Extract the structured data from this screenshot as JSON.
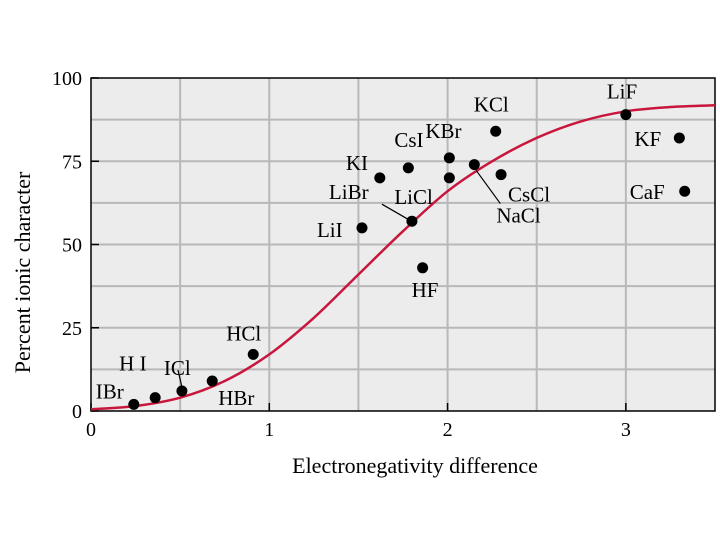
{
  "chart_data": {
    "type": "scatter",
    "title": "",
    "xlabel": "Electronegativity difference",
    "ylabel": "Percent ionic character",
    "xlim": [
      0,
      3.5
    ],
    "ylim": [
      0,
      100
    ],
    "x_ticks": [
      "0",
      "1",
      "2",
      "3"
    ],
    "y_ticks": [
      "0",
      "25",
      "50",
      "75",
      "100"
    ],
    "grid": true,
    "colors": {
      "plot_background": "#ececec",
      "grid": "#b8b8b8",
      "curve": "#c8163c",
      "points": "#000000"
    },
    "points": [
      {
        "label": "IBr",
        "x": 0.24,
        "y": 2
      },
      {
        "label": "H I",
        "x": 0.36,
        "y": 4
      },
      {
        "label": "ICl",
        "x": 0.51,
        "y": 6
      },
      {
        "label": "HBr",
        "x": 0.68,
        "y": 9
      },
      {
        "label": "HCl",
        "x": 0.91,
        "y": 17
      },
      {
        "label": "LiI",
        "x": 1.52,
        "y": 55
      },
      {
        "label": "KI",
        "x": 1.62,
        "y": 70
      },
      {
        "label": "LiBr",
        "x": 1.8,
        "y": 57
      },
      {
        "label": "CsI",
        "x": 1.78,
        "y": 73
      },
      {
        "label": "HF",
        "x": 1.86,
        "y": 43
      },
      {
        "label": "LiCl",
        "x": 2.01,
        "y": 70
      },
      {
        "label": "KBr",
        "x": 2.01,
        "y": 76
      },
      {
        "label": "NaCl",
        "x": 2.15,
        "y": 74
      },
      {
        "label": "KCl",
        "x": 2.27,
        "y": 84
      },
      {
        "label": "CsCl",
        "x": 2.3,
        "y": 71
      },
      {
        "label": "LiF",
        "x": 3.0,
        "y": 89
      },
      {
        "label": "KF",
        "x": 3.3,
        "y": 82
      },
      {
        "label": "CaF",
        "x": 3.33,
        "y": 66
      }
    ],
    "curve": {
      "description": "fit",
      "x": [
        0,
        0.25,
        0.5,
        0.75,
        1.0,
        1.25,
        1.5,
        1.75,
        2.0,
        2.25,
        2.5,
        2.75,
        3.0,
        3.25,
        3.5
      ],
      "y": [
        0.5,
        1.5,
        4,
        9,
        17,
        28,
        41,
        54,
        66,
        75,
        82,
        87,
        90,
        91.3,
        91.8
      ]
    }
  }
}
